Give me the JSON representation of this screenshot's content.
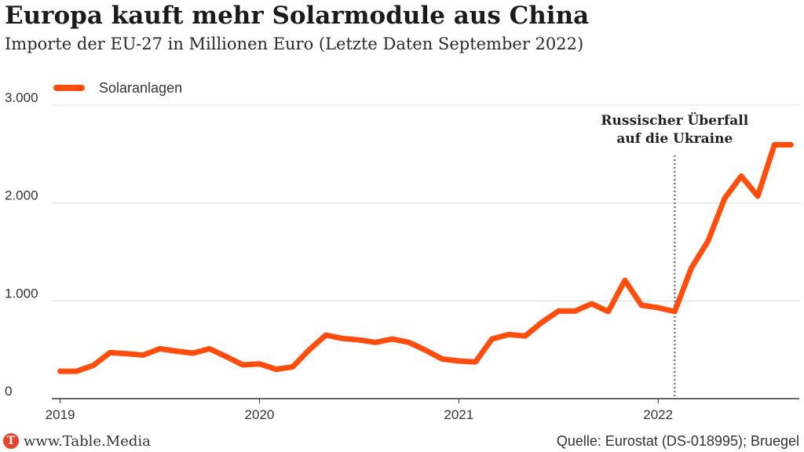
{
  "title": "Europa kauft mehr Solarmodule aus China",
  "subtitle": "Importe der EU-27 in Millionen Euro (Letzte Daten September 2022)",
  "legend_label": "Solaranlagen",
  "colors": {
    "line": "#ff4d0d",
    "grid": "#dcdcdc",
    "axis": "#333333",
    "marker": "#777777"
  },
  "annotation": {
    "line1": "Russischer Überfall",
    "line2": "auf die Ukraine",
    "x": 2022.0833
  },
  "footer": {
    "logo_letter": "T",
    "site": "www.Table.Media",
    "source": "Quelle: Eurostat (DS-018995); Bruegel"
  },
  "chart_data": {
    "type": "line",
    "xlim": [
      2018.9583,
      2022.7083
    ],
    "ylim": [
      0,
      3000
    ],
    "yticks": [
      {
        "value": 0,
        "label": "0"
      },
      {
        "value": 1000,
        "label": "1.000"
      },
      {
        "value": 2000,
        "label": "2.000"
      },
      {
        "value": 3000,
        "label": "3.000"
      }
    ],
    "xticks": [
      {
        "value": 2019,
        "label": "2019"
      },
      {
        "value": 2020,
        "label": "2020"
      },
      {
        "value": 2021,
        "label": "2021"
      },
      {
        "value": 2022,
        "label": "2022"
      }
    ],
    "grid": true,
    "legend": "top-left",
    "series": [
      {
        "name": "Solaranlagen",
        "x": [
          2019.0,
          2019.0833,
          2019.1667,
          2019.25,
          2019.3333,
          2019.4167,
          2019.5,
          2019.5833,
          2019.6667,
          2019.75,
          2019.8333,
          2019.9167,
          2020.0,
          2020.0833,
          2020.1667,
          2020.25,
          2020.3333,
          2020.4167,
          2020.5,
          2020.5833,
          2020.6667,
          2020.75,
          2020.8333,
          2020.9167,
          2021.0,
          2021.0833,
          2021.1667,
          2021.25,
          2021.3333,
          2021.4167,
          2021.5,
          2021.5833,
          2021.6667,
          2021.75,
          2021.8333,
          2021.9167,
          2022.0,
          2022.0833,
          2022.1667,
          2022.25,
          2022.3333,
          2022.4167,
          2022.5,
          2022.5833,
          2022.6667
        ],
        "values": [
          280,
          280,
          340,
          470,
          460,
          445,
          510,
          485,
          465,
          510,
          430,
          345,
          355,
          300,
          325,
          500,
          650,
          615,
          600,
          575,
          610,
          575,
          495,
          405,
          385,
          375,
          610,
          655,
          640,
          780,
          895,
          895,
          970,
          890,
          1210,
          955,
          930,
          890,
          1335,
          1610,
          2045,
          2275,
          2070,
          2595,
          2595
        ]
      }
    ]
  }
}
